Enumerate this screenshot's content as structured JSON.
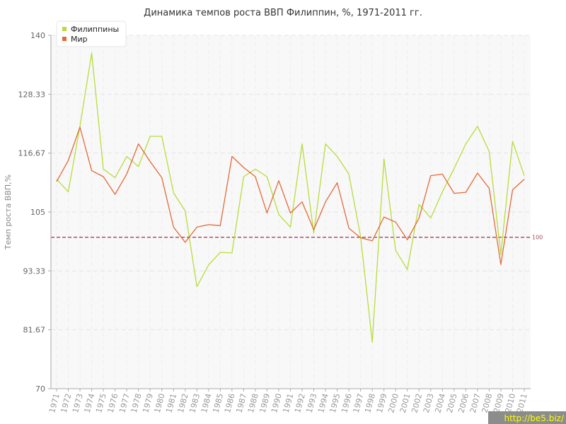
{
  "chart_data": {
    "type": "line",
    "title": "Динамика темпов роста ВВП Филиппин, %, 1971-2011 гг.",
    "xlabel": "",
    "ylabel": "Темп роста ВВП,%",
    "ylim": [
      70,
      140
    ],
    "yticks": [
      "70",
      "81.67",
      "93.33",
      "105",
      "116.67",
      "128.33",
      "140"
    ],
    "grid": true,
    "legend_position": "top-left",
    "categories": [
      "1971",
      "1972",
      "1973",
      "1974",
      "1975",
      "1976",
      "1977",
      "1978",
      "1979",
      "1980",
      "1981",
      "1982",
      "1983",
      "1984",
      "1985",
      "1986",
      "1987",
      "1988",
      "1989",
      "1990",
      "1991",
      "1992",
      "1993",
      "1994",
      "1995",
      "1996",
      "1997",
      "1998",
      "1999",
      "2000",
      "2001",
      "2002",
      "2003",
      "2004",
      "2005",
      "2006",
      "2007",
      "2008",
      "2009",
      "2010",
      "2011"
    ],
    "series": [
      {
        "name": "Филиппины",
        "color": "#b8dc3c",
        "values": [
          111.5,
          109.0,
          122.0,
          136.5,
          113.5,
          111.8,
          116.0,
          114.0,
          120.0,
          120.0,
          108.8,
          105.2,
          90.2,
          94.5,
          97.0,
          96.9,
          112.0,
          113.5,
          112.0,
          104.5,
          102.0,
          118.5,
          100.8,
          118.5,
          116.0,
          112.5,
          100.2,
          79.2,
          115.5,
          97.4,
          93.6,
          106.5,
          103.8,
          109.0,
          113.6,
          118.5,
          122.0,
          117.0,
          96.6,
          119.0,
          112.2
        ]
      },
      {
        "name": "Мир",
        "color": "#e06a3a",
        "values": [
          111.0,
          115.2,
          121.8,
          113.2,
          112.0,
          108.5,
          112.5,
          118.5,
          115.0,
          111.8,
          102.0,
          99.0,
          102.0,
          102.5,
          102.3,
          116.0,
          113.8,
          112.0,
          104.8,
          111.2,
          104.8,
          107.0,
          101.5,
          107.0,
          110.8,
          101.8,
          99.9,
          99.3,
          104.0,
          103.0,
          99.5,
          103.8,
          112.2,
          112.5,
          108.7,
          108.9,
          112.7,
          109.7,
          94.6,
          109.4,
          111.5
        ]
      }
    ],
    "reference_line": {
      "value": 100,
      "label": "100",
      "color": "#a0304a"
    }
  },
  "watermark": "http://be5.biz/"
}
